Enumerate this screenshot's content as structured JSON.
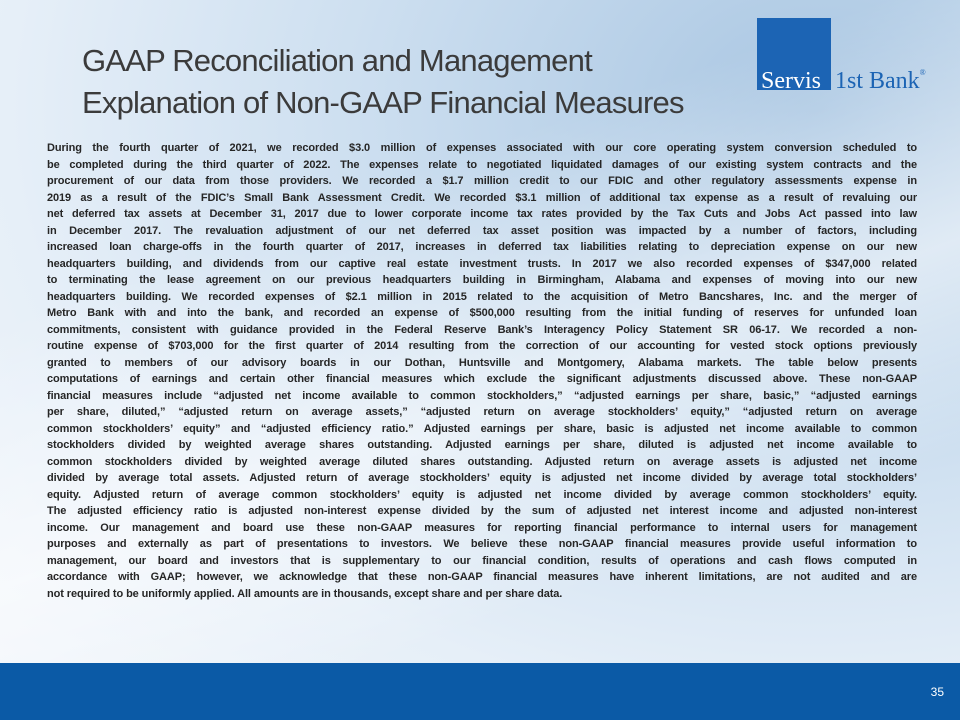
{
  "title": {
    "line1": "GAAP Reconciliation and Management",
    "line2": "Explanation of Non-GAAP Financial Measures"
  },
  "logo": {
    "part1": "Servis",
    "part2": "1st Bank",
    "reg": "®",
    "color": "#1c64b4"
  },
  "body_lines": [
    "During the fourth quarter of 2021, we recorded $3.0 million of expenses associated with our core operating system conversion scheduled to",
    "be completed during the third quarter of 2022.  The expenses relate to negotiated liquidated damages of our existing system contracts and the",
    "procurement of our data from those providers. We recorded a $1.7 million credit to our FDIC and other regulatory assessments expense in",
    "2019 as a result of the FDIC’s Small Bank Assessment Credit.  We recorded $3.1 million of additional tax expense as a result of revaluing our",
    "net deferred tax assets at December 31, 2017 due to lower corporate income tax rates provided by the Tax Cuts and Jobs Act passed into law",
    "in December 2017.  The revaluation adjustment of our net deferred tax asset position was impacted by a number of factors, including",
    "increased loan charge-offs in the fourth quarter of 2017, increases in deferred tax liabilities relating to depreciation expense on our new",
    "headquarters building, and dividends from our captive real estate investment trusts.  In 2017 we also recorded expenses of $347,000 related",
    "to terminating the lease agreement on our previous headquarters building in Birmingham, Alabama and expenses of moving into our new",
    "headquarters building.  We recorded expenses of $2.1 million in 2015 related to the acquisition of Metro Bancshares, Inc. and the merger of",
    "Metro Bank with and into the bank, and recorded an expense of $500,000 resulting from the initial funding of reserves for unfunded loan",
    "commitments, consistent with guidance provided in the Federal Reserve Bank’s Interagency Policy Statement SR 06-17. We recorded a non-",
    "routine expense of $703,000 for the first quarter of 2014 resulting from the correction of our accounting for vested stock options previously",
    "granted to members of our advisory boards in our Dothan, Huntsville and Montgomery, Alabama markets. The table below presents",
    "computations of earnings and certain other financial measures which exclude the significant adjustments discussed above.  These non-GAAP",
    "financial measures include “adjusted net income available to common stockholders,” “adjusted earnings per share, basic,” “adjusted earnings",
    "per share, diluted,” “adjusted return on average assets,” “adjusted return on average stockholders’ equity,” “adjusted return on average",
    "common stockholders’ equity” and “adjusted efficiency ratio.”  Adjusted earnings per share, basic is adjusted net income available to common",
    "stockholders divided by weighted average shares outstanding.  Adjusted earnings per share, diluted is adjusted net income available to",
    "common stockholders divided by weighted average diluted shares outstanding.  Adjusted return on average assets is adjusted net income",
    "divided by average total assets.  Adjusted return of average stockholders’ equity is adjusted net income divided by average total stockholders’",
    "equity.  Adjusted return of average common stockholders’ equity is adjusted net income divided by average common stockholders’ equity.",
    "The adjusted efficiency ratio is adjusted non-interest expense divided by the sum of adjusted net interest income and adjusted non-interest",
    "income.  Our management and board use these non-GAAP measures for reporting financial performance to internal users for management",
    "purposes and externally as part of presentations to investors.  We believe these non-GAAP financial measures provide useful information to",
    "management, our board and investors that is supplementary to our financial condition, results of operations and cash flows computed in",
    "accordance with GAAP; however, we acknowledge that these non-GAAP financial measures have inherent limitations, are not audited and are",
    "not required to be uniformly applied.  All amounts are in thousands, except share and per share data."
  ],
  "footer": {
    "page_number": "35",
    "color": "#0b5aa6"
  }
}
